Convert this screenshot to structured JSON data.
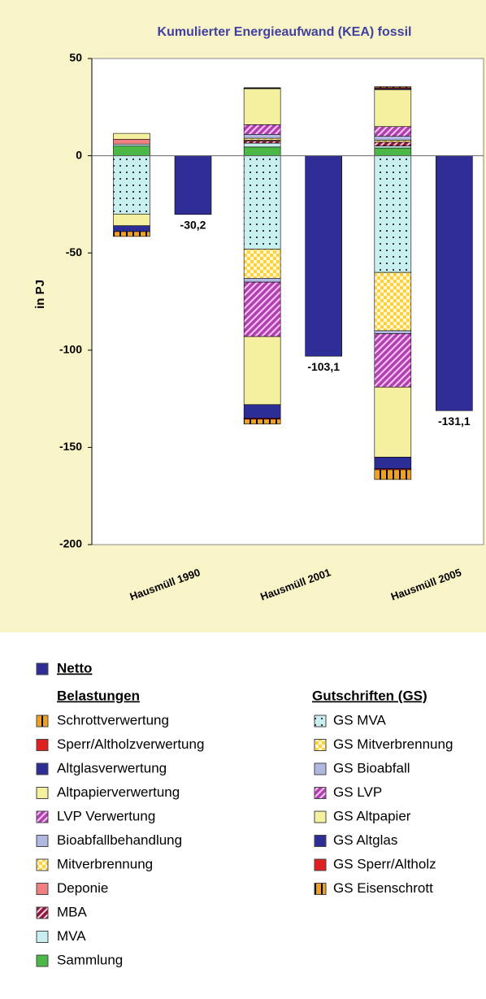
{
  "chart_data": {
    "type": "bar",
    "stacked": true,
    "title": "Kumulierter Energieaufwand (KEA) fossil",
    "y_label": "in PJ",
    "categories": [
      "Hausmüll 1990",
      "Hausmüll 2001",
      "Hausmüll 2005"
    ],
    "ylim": [
      -200,
      50
    ],
    "yticks": [
      50,
      0,
      -50,
      -100,
      -150,
      -200
    ],
    "grid": false,
    "netto": {
      "name": "Netto",
      "color": "#2e2e96",
      "values": [
        -30.2,
        -103.1,
        -131.1
      ],
      "value_labels": [
        "-30,2",
        "-103,1",
        "-131,1"
      ]
    },
    "series_groups": [
      {
        "name": "Belastungen",
        "series": [
          {
            "name": "Schrottverwertung",
            "color": "#f0a020",
            "pattern": "vertical",
            "values": [
              0,
              0,
              0.5
            ]
          },
          {
            "name": "Sperr/Altholzverwertung",
            "color": "#e02020",
            "values": [
              0,
              0.2,
              0.5
            ]
          },
          {
            "name": "Altglasverwertung",
            "color": "#2d2d96",
            "values": [
              0,
              0.3,
              0.5
            ]
          },
          {
            "name": "Altpapierverwertung",
            "color": "#f5f0a0",
            "values": [
              3,
              18.5,
              19
            ]
          },
          {
            "name": "LVP Verwertung",
            "color": "#b040b0",
            "pattern": "diagonal",
            "values": [
              0,
              5,
              5
            ]
          },
          {
            "name": "Bioabfallbehandlung",
            "color": "#b0b8e0",
            "values": [
              0,
              2,
              2
            ]
          },
          {
            "name": "Mitverbrennung",
            "color": "#ffd040",
            "pattern": "checker",
            "values": [
              0,
              1,
              1
            ]
          },
          {
            "name": "Deponie",
            "color": "#f08080",
            "values": [
              2.5,
              0.5,
              0
            ]
          },
          {
            "name": "MBA",
            "color": "#8b1a2b",
            "pattern": "diagonal",
            "values": [
              0,
              1,
              2
            ]
          },
          {
            "name": "MVA",
            "color": "#c8eef0",
            "values": [
              1,
              2,
              1
            ]
          },
          {
            "name": "Sammlung",
            "color": "#4cb848",
            "values": [
              5,
              4.5,
              4
            ]
          }
        ]
      },
      {
        "name": "Gutschriften (GS)",
        "series": [
          {
            "name": "GS MVA",
            "color": "#c8eef0",
            "pattern": "dots",
            "values": [
              -30,
              -48,
              -60
            ]
          },
          {
            "name": "GS Mitverbrennung",
            "color": "#ffd040",
            "pattern": "checker",
            "values": [
              0,
              -15,
              -30
            ]
          },
          {
            "name": "GS Bioabfall",
            "color": "#b0b8e0",
            "values": [
              0,
              -2,
              -1.5
            ]
          },
          {
            "name": "GS LVP",
            "color": "#b040b0",
            "pattern": "diagonal",
            "values": [
              0,
              -28,
              -27.5
            ]
          },
          {
            "name": "GS Altpapier",
            "color": "#f5f0a0",
            "values": [
              -6,
              -35,
              -36
            ]
          },
          {
            "name": "GS Altglas",
            "color": "#2d2d96",
            "values": [
              -3,
              -7,
              -6
            ]
          },
          {
            "name": "GS Sperr/Altholz",
            "color": "#e02020",
            "values": [
              0,
              -0.5,
              -0.5
            ]
          },
          {
            "name": "GS Eisenschrott",
            "color": "#f0a020",
            "pattern": "vertical",
            "values": [
              -2.5,
              -2.5,
              -5
            ]
          }
        ]
      }
    ]
  }
}
